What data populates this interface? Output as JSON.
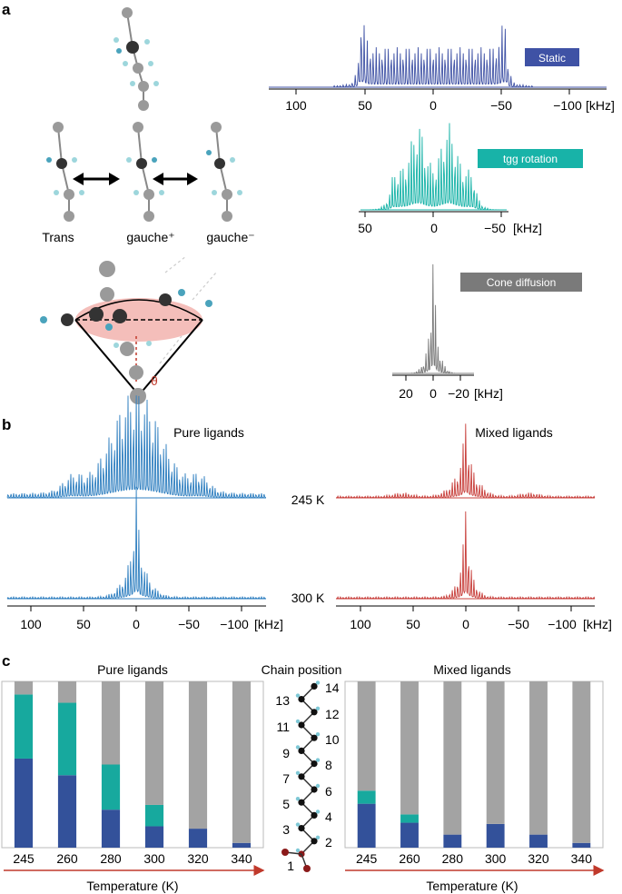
{
  "panel_labels": {
    "a": "a",
    "b": "b",
    "c": "c"
  },
  "colors": {
    "static": "#3f52a5",
    "tgg": "#18b3a8",
    "cone": "#7a7a7a",
    "pure": "#2f7fc0",
    "mixed": "#c8403c",
    "bar_blue": "#33519a",
    "bar_teal": "#17a99e",
    "bar_gray": "#a3a3a3",
    "arrow_red": "#c0392b"
  },
  "panel_a": {
    "molecule_labels": [
      "Trans",
      "gauche⁺",
      "gauche⁻"
    ],
    "theta_label": "θ",
    "spectra": [
      {
        "label": "Static",
        "ticks": [
          "100",
          "50",
          "0",
          "−50",
          "−100"
        ],
        "unit": "[kHz]"
      },
      {
        "label": "tgg rotation",
        "ticks": [
          "50",
          "0",
          "−50"
        ],
        "unit": "[kHz]"
      },
      {
        "label": "Cone diffusion",
        "ticks": [
          "20",
          "0",
          "−20"
        ],
        "unit": "[kHz]"
      }
    ]
  },
  "panel_b": {
    "titles": [
      "Pure ligands",
      "Mixed ligands"
    ],
    "temps": [
      "245 K",
      "300 K"
    ],
    "ticks": [
      "100",
      "50",
      "0",
      "−50",
      "−100"
    ],
    "unit": "[kHz]"
  },
  "panel_c": {
    "titles": [
      "Pure ligands",
      "Mixed ligands"
    ],
    "center_title": "Chain position",
    "odd_positions": [
      "13",
      "11",
      "9",
      "7",
      "5",
      "3",
      "1"
    ],
    "even_positions": [
      "14",
      "12",
      "10",
      "8",
      "6",
      "4",
      "2"
    ],
    "x_axis_label": "Temperature (K)"
  },
  "chart_data": [
    {
      "type": "bar",
      "panel": "c-pure",
      "title": "Pure ligands",
      "xlabel": "Temperature (K)",
      "categories": [
        "245",
        "260",
        "280",
        "300",
        "320",
        "340"
      ],
      "ylim": [
        0,
        14
      ],
      "series": [
        {
          "values": [
            7.5,
            6.1,
            3.2,
            1.8,
            1.6,
            0.4
          ]
        },
        {
          "values": [
            5.4,
            6.1,
            3.8,
            1.8,
            0,
            0
          ]
        },
        {
          "values": [
            1.1,
            1.8,
            7.0,
            10.4,
            12.4,
            13.6
          ]
        }
      ]
    },
    {
      "type": "bar",
      "panel": "c-mixed",
      "title": "Mixed ligands",
      "xlabel": "Temperature (K)",
      "categories": [
        "245",
        "260",
        "280",
        "300",
        "320",
        "340"
      ],
      "ylim": [
        0,
        14
      ],
      "series": [
        {
          "values": [
            3.7,
            2.1,
            1.1,
            2.0,
            1.1,
            0.4
          ]
        },
        {
          "values": [
            1.1,
            0.7,
            0,
            0,
            0,
            0
          ]
        },
        {
          "values": [
            9.2,
            11.2,
            12.9,
            12.0,
            12.9,
            13.6
          ]
        }
      ]
    }
  ]
}
